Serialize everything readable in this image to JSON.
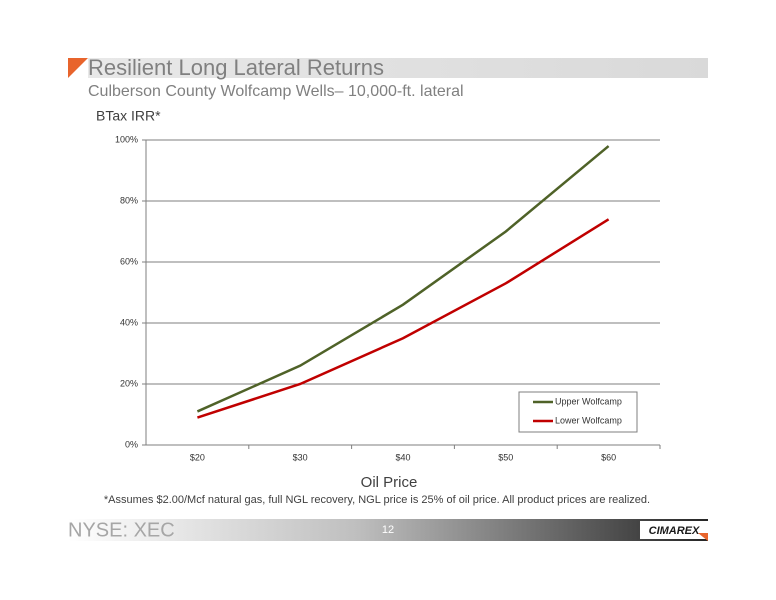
{
  "slide": {
    "title": "Resilient Long Lateral Returns",
    "subtitle": "Culberson County Wolfcamp Wells– 10,000-ft. lateral",
    "footnote": "*Assumes $2.00/Mcf natural gas, full NGL recovery, NGL price is 25% of oil price. All product prices are realized.",
    "ticker": "NYSE: XEC",
    "page": "12",
    "logo": "CIMAREX"
  },
  "chart_data": {
    "type": "line",
    "y_label": "BTax IRR*",
    "x_label": "Oil Price",
    "categories": [
      "$20",
      "$30",
      "$40",
      "$50",
      "$60"
    ],
    "series": [
      {
        "name": "Upper Wolfcamp",
        "color": "#4f6228",
        "values": [
          11,
          26,
          46,
          70,
          98
        ]
      },
      {
        "name": "Lower Wolfcamp",
        "color": "#c00000",
        "values": [
          9,
          20,
          35,
          53,
          74
        ]
      }
    ],
    "ylim": [
      0,
      100
    ],
    "yticks": [
      {
        "value": 0,
        "label": "0%"
      },
      {
        "value": 20,
        "label": "20%"
      },
      {
        "value": 40,
        "label": "40%"
      },
      {
        "value": 60,
        "label": "60%"
      },
      {
        "value": 80,
        "label": "80%"
      },
      {
        "value": 100,
        "label": "100%"
      }
    ],
    "grid": true,
    "legend": "lower-right"
  }
}
